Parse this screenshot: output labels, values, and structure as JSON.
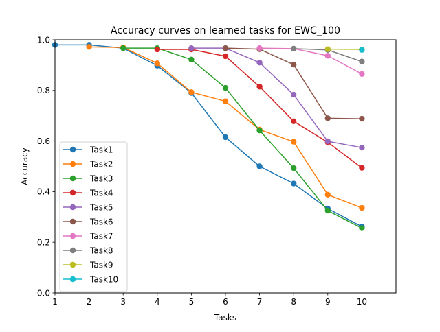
{
  "chart_data": {
    "type": "line",
    "title": "Accuracy curves on learned tasks for EWC_100",
    "xlabel": "Tasks",
    "ylabel": "Accuracy",
    "xlim": [
      1,
      11
    ],
    "ylim": [
      0.0,
      1.0
    ],
    "x_ticks": [
      "1",
      "2",
      "3",
      "4",
      "5",
      "6",
      "7",
      "8",
      "9",
      "10"
    ],
    "y_ticks": [
      "0.0",
      "0.2",
      "0.4",
      "0.6",
      "0.8",
      "1.0"
    ],
    "grid": false,
    "legend_position": "center-left",
    "series": [
      {
        "name": "Task1",
        "color": "#1f77b4",
        "x": [
          1,
          2,
          3,
          4,
          5,
          6,
          7,
          8,
          9,
          10
        ],
        "values": [
          0.98,
          0.98,
          0.967,
          0.898,
          0.79,
          0.615,
          0.5,
          0.432,
          0.333,
          0.262
        ]
      },
      {
        "name": "Task2",
        "color": "#ff7f0e",
        "x": [
          2,
          3,
          4,
          5,
          6,
          7,
          8,
          9,
          10
        ],
        "values": [
          0.972,
          0.97,
          0.907,
          0.793,
          0.757,
          0.645,
          0.597,
          0.388,
          0.336
        ]
      },
      {
        "name": "Task3",
        "color": "#2ca02c",
        "x": [
          3,
          4,
          5,
          6,
          7,
          8,
          9,
          10
        ],
        "values": [
          0.967,
          0.967,
          0.922,
          0.81,
          0.642,
          0.493,
          0.325,
          0.256
        ]
      },
      {
        "name": "Task4",
        "color": "#d62728",
        "x": [
          4,
          5,
          6,
          7,
          8,
          9,
          10
        ],
        "values": [
          0.962,
          0.962,
          0.935,
          0.815,
          0.678,
          0.595,
          0.494
        ]
      },
      {
        "name": "Task5",
        "color": "#9467bd",
        "x": [
          5,
          6,
          7,
          8,
          9,
          10
        ],
        "values": [
          0.967,
          0.967,
          0.91,
          0.783,
          0.599,
          0.574
        ]
      },
      {
        "name": "Task6",
        "color": "#8c564b",
        "x": [
          6,
          7,
          8,
          9,
          10
        ],
        "values": [
          0.967,
          0.963,
          0.902,
          0.69,
          0.688
        ]
      },
      {
        "name": "Task7",
        "color": "#e377c2",
        "x": [
          7,
          8,
          9,
          10
        ],
        "values": [
          0.967,
          0.965,
          0.937,
          0.865
        ]
      },
      {
        "name": "Task8",
        "color": "#7f7f7f",
        "x": [
          8,
          9,
          10
        ],
        "values": [
          0.965,
          0.96,
          0.914
        ]
      },
      {
        "name": "Task9",
        "color": "#bcbd22",
        "x": [
          9,
          10
        ],
        "values": [
          0.963,
          0.962
        ]
      },
      {
        "name": "Task10",
        "color": "#17becf",
        "x": [
          10
        ],
        "values": [
          0.96
        ]
      }
    ]
  }
}
